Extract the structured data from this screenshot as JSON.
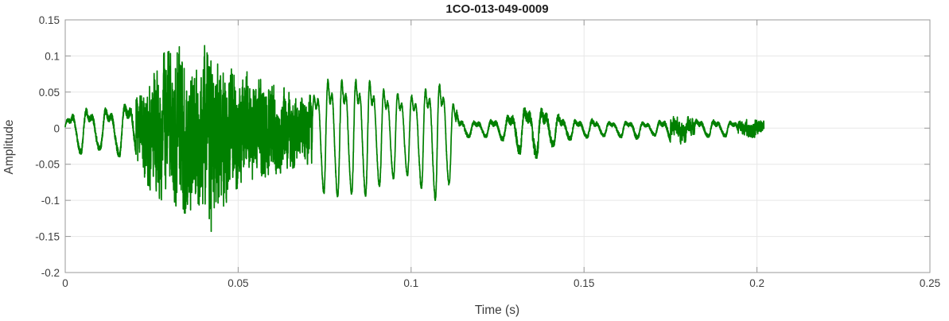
{
  "figure": {
    "title": "1CO-013-049-0009",
    "xlabel": "Time (s)",
    "ylabel": "Amplitude"
  },
  "chart_data": {
    "type": "line",
    "title": "1CO-013-049-0009",
    "xlabel": "Time (s)",
    "ylabel": "Amplitude",
    "xlim": [
      0,
      0.25
    ],
    "ylim": [
      -0.2,
      0.15
    ],
    "xticks": [
      0,
      0.05,
      0.1,
      0.15,
      0.2,
      0.25
    ],
    "xtick_labels": [
      "0",
      "0.05",
      "0.1",
      "0.15",
      "0.2",
      "0.25"
    ],
    "yticks": [
      -0.2,
      -0.15,
      -0.1,
      -0.05,
      0,
      0.05,
      0.1,
      0.15
    ],
    "ytick_labels": [
      "-0.2",
      "-0.15",
      "-0.1",
      "-0.05",
      "0",
      "0.05",
      "0.1",
      "0.15"
    ],
    "grid": true,
    "legend": "none",
    "colors": {
      "line": "#008000",
      "grid": "#e7e7e7",
      "axis": "#999999",
      "tick_text": "#3d3d3d",
      "title_text": "#1f1f1f",
      "background": "#ffffff"
    },
    "series": [
      {
        "name": "waveform",
        "color": "#008000",
        "signal": {
          "description": "speech-like waveform: quiet onset 0-0.02s (~180Hz, amp ±0.035), dense noisy burst 0.02-0.072s (peak +0.133 / -0.157 at t=0.042), quasi-periodic voiced section 0.072-0.113s (~250Hz, amp +0.088/-0.105), low-amplitude decaying tail to t=0.202s with small bursts near 0.135s, 0.178s and 0.198s",
          "duration": 0.202,
          "sample_dt": 2.5e-05,
          "seed": 1337,
          "envelope": [
            [
              0.0,
              0.01,
              -0.008
            ],
            [
              0.002,
              0.03,
              -0.025
            ],
            [
              0.004,
              0.038,
              -0.035
            ],
            [
              0.007,
              0.03,
              -0.04
            ],
            [
              0.01,
              0.035,
              -0.03
            ],
            [
              0.013,
              0.032,
              -0.035
            ],
            [
              0.016,
              0.04,
              -0.04
            ],
            [
              0.019,
              0.045,
              -0.045
            ],
            [
              0.022,
              0.06,
              -0.06
            ],
            [
              0.025,
              0.08,
              -0.09
            ],
            [
              0.028,
              0.1,
              -0.1
            ],
            [
              0.031,
              0.12,
              -0.1
            ],
            [
              0.033,
              0.122,
              -0.115
            ],
            [
              0.036,
              0.1,
              -0.12
            ],
            [
              0.039,
              0.1,
              -0.105
            ],
            [
              0.042,
              0.133,
              -0.157
            ],
            [
              0.044,
              0.11,
              -0.12
            ],
            [
              0.047,
              0.09,
              -0.1
            ],
            [
              0.05,
              0.095,
              -0.085
            ],
            [
              0.053,
              0.075,
              -0.08
            ],
            [
              0.056,
              0.07,
              -0.07
            ],
            [
              0.06,
              0.06,
              -0.065
            ],
            [
              0.064,
              0.055,
              -0.06
            ],
            [
              0.068,
              0.05,
              -0.05
            ],
            [
              0.071,
              0.045,
              -0.05
            ],
            [
              0.073,
              0.075,
              -0.07
            ],
            [
              0.076,
              0.088,
              -0.105
            ],
            [
              0.08,
              0.087,
              -0.09
            ],
            [
              0.084,
              0.088,
              -0.092
            ],
            [
              0.088,
              0.086,
              -0.095
            ],
            [
              0.092,
              0.07,
              -0.075
            ],
            [
              0.096,
              0.065,
              -0.068
            ],
            [
              0.1,
              0.06,
              -0.065
            ],
            [
              0.104,
              0.07,
              -0.09
            ],
            [
              0.107,
              0.083,
              -0.1
            ],
            [
              0.11,
              0.078,
              -0.095
            ],
            [
              0.1125,
              0.04,
              -0.05
            ],
            [
              0.114,
              0.015,
              -0.015
            ],
            [
              0.118,
              0.012,
              -0.012
            ],
            [
              0.123,
              0.013,
              -0.013
            ],
            [
              0.127,
              0.018,
              -0.018
            ],
            [
              0.131,
              0.03,
              -0.035
            ],
            [
              0.134,
              0.035,
              -0.04
            ],
            [
              0.137,
              0.032,
              -0.042
            ],
            [
              0.14,
              0.03,
              -0.028
            ],
            [
              0.144,
              0.018,
              -0.018
            ],
            [
              0.148,
              0.013,
              -0.015
            ],
            [
              0.152,
              0.015,
              -0.013
            ],
            [
              0.157,
              0.011,
              -0.011
            ],
            [
              0.16,
              0.01,
              -0.012
            ],
            [
              0.164,
              0.012,
              -0.018
            ],
            [
              0.168,
              0.009,
              -0.009
            ],
            [
              0.172,
              0.012,
              -0.012
            ],
            [
              0.176,
              0.018,
              -0.022
            ],
            [
              0.18,
              0.016,
              -0.022
            ],
            [
              0.184,
              0.013,
              -0.013
            ],
            [
              0.188,
              0.013,
              -0.012
            ],
            [
              0.192,
              0.011,
              -0.012
            ],
            [
              0.196,
              0.012,
              -0.016
            ],
            [
              0.199,
              0.013,
              -0.018
            ],
            [
              0.201,
              0.015,
              -0.012
            ],
            [
              0.202,
              0.012,
              -0.005
            ]
          ],
          "segments": [
            {
              "t0": 0.0,
              "t1": 0.0205,
              "mode": "tone",
              "freq": 180,
              "noise": 0.18
            },
            {
              "t0": 0.0205,
              "t1": 0.0715,
              "mode": "noise",
              "freq": 260,
              "noise": 0.78
            },
            {
              "t0": 0.0715,
              "t1": 0.1128,
              "mode": "tone",
              "freq": 248,
              "noise": 0.05
            },
            {
              "t0": 0.1128,
              "t1": 0.175,
              "mode": "tone",
              "freq": 205,
              "noise": 0.28
            },
            {
              "t0": 0.175,
              "t1": 0.182,
              "mode": "noise",
              "freq": 210,
              "noise": 0.6
            },
            {
              "t0": 0.182,
              "t1": 0.1945,
              "mode": "tone",
              "freq": 205,
              "noise": 0.28
            },
            {
              "t0": 0.1945,
              "t1": 0.202,
              "mode": "noise",
              "freq": 200,
              "noise": 0.65
            }
          ]
        }
      }
    ]
  }
}
